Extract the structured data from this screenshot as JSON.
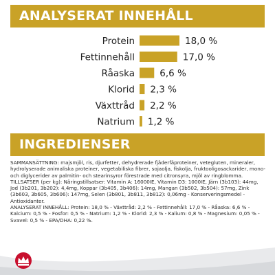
{
  "headings": {
    "analysis": "ANALYSERAT INNEHÅLL",
    "ingredients": "INGREDIENSER"
  },
  "chart_data": {
    "type": "bar",
    "orientation": "horizontal",
    "categories": [
      "Protein",
      "Fettinnehåll",
      "Råaska",
      "Klorid",
      "Växttråd",
      "Natrium"
    ],
    "values": [
      18.0,
      17.0,
      6.6,
      2.3,
      2.2,
      1.2
    ],
    "value_labels": [
      "18,0 %",
      "17,0 %",
      "6,6 %",
      "2,3 %",
      "2,2 %",
      "1,2 %"
    ],
    "unit": "%",
    "xlim": [
      0,
      18
    ],
    "grid": false,
    "bar_color": "#c9a227"
  },
  "ingredients": {
    "paragraphs": [
      "SAMMANSÄTTNING: majsmjöl, ris, djurfetter, dehydrerade fjäderfäproteiner, vetegluten, mineraler, hydrolyserade animaliska proteiner, vegetabiliska fibrer, sojaolja, fiskolja, fruktooligosackarider, mono- och diglycerider av palmitin- och stearinsyror förestrade med citronsyra, mjöl av ringblomma.",
      "TILLSATSER (per kg): Näringstillsatser: Vitamin A: 16000IE, Vitamin D3: 1000IE, Järn (3b103): 44mg, Jod (3b201, 3b202): 4,4mg, Koppar (3b405, 3b406): 14mg, Mangan (3b502, 3b504): 57mg, Zink (3b603, 3b605, 3b606): 147mg, Selen (3b801, 3b811, 3b812): 0,06mg - Konserveringsmedel - Antioxidanter.",
      "ANALYSERAT INNEHÅLL: Protein: 18,0 % - Växttråd: 2,2 % - Fettinnehåll: 17,0 % - Råaska: 6,6 % - Kalcium: 0,5 % - Fosfor: 0,5 % - Natrium: 1,2 % - Klorid: 2,3 % - Kalium: 0,8 % - Magnesium: 0,05 % - Svavel: 0,5 % - EPA/DHA: 0,22 %."
    ]
  },
  "colors": {
    "accent": "#c9a227",
    "brand_red": "#c8102e",
    "footer_band": "#e9eaec"
  },
  "footer": {
    "logo_icon": "royal-canin-crown-icon"
  }
}
